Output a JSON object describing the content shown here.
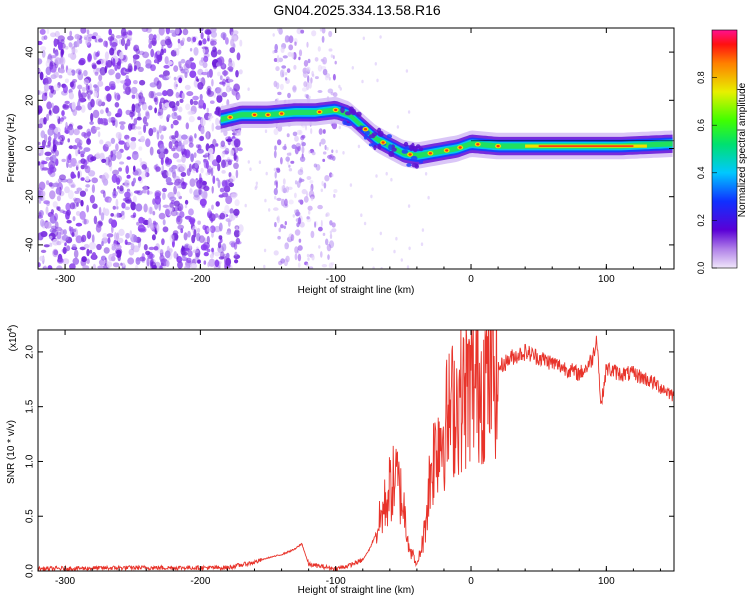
{
  "title": "GN04.2025.334.13.58.R16",
  "chart_data": [
    {
      "type": "heatmap",
      "name": "spectrogram",
      "xlabel": "Height of straight line (km)",
      "ylabel": "Frequency (Hz)",
      "xlim": [
        -320,
        150
      ],
      "ylim": [
        -50,
        50
      ],
      "xticks": [
        -300,
        -200,
        -100,
        0,
        100
      ],
      "yticks": [
        -40,
        -20,
        0,
        20,
        40
      ],
      "colorbar": {
        "label": "Normalized spectral amplitude",
        "range": [
          0,
          1
        ],
        "ticks": [
          0.0,
          0.2,
          0.4,
          0.6,
          0.8
        ]
      },
      "ridge": {
        "x": [
          -185,
          -170,
          -150,
          -130,
          -115,
          -100,
          -90,
          -80,
          -70,
          -60,
          -50,
          -40,
          -30,
          -20,
          -10,
          0,
          20,
          50,
          80,
          110,
          150
        ],
        "frequency": [
          12,
          14,
          14,
          15,
          15,
          16,
          14,
          9,
          4,
          1,
          -2,
          -3,
          -2,
          -1,
          0,
          2,
          1,
          1,
          1,
          1,
          2
        ]
      },
      "noise_region_x": [
        -320,
        -185
      ]
    },
    {
      "type": "line",
      "name": "snr",
      "xlabel": "Height of straight line (km)",
      "ylabel": "SNR (10 * v/v)",
      "yscale_label": "(x10",
      "yscale_exp": "4",
      "xlim": [
        -320,
        150
      ],
      "ylim": [
        0,
        2.2
      ],
      "xticks": [
        -300,
        -200,
        -100,
        0,
        100
      ],
      "yticks": [
        0.0,
        0.5,
        1.0,
        1.5,
        2.0
      ],
      "color": "#e8332a",
      "series": [
        {
          "name": "SNR",
          "x": [
            -320,
            -250,
            -180,
            -160,
            -150,
            -140,
            -130,
            -125,
            -120,
            -100,
            -90,
            -80,
            -75,
            -70,
            -65,
            -60,
            -55,
            -50,
            -45,
            -40,
            -35,
            -30,
            -25,
            -20,
            -15,
            -10,
            -5,
            0,
            10,
            20,
            30,
            40,
            50,
            60,
            70,
            80,
            85,
            90,
            93,
            96,
            100,
            110,
            120,
            130,
            140,
            150
          ],
          "y": [
            0.02,
            0.03,
            0.03,
            0.08,
            0.12,
            0.15,
            0.2,
            0.25,
            0.06,
            0.02,
            0.05,
            0.1,
            0.2,
            0.35,
            0.55,
            0.75,
            0.85,
            0.6,
            0.2,
            0.05,
            0.3,
            0.9,
            1.2,
            1.3,
            1.45,
            1.55,
            1.6,
            1.7,
            1.75,
            1.85,
            1.95,
            2.0,
            1.95,
            1.9,
            1.85,
            1.8,
            1.85,
            1.95,
            2.15,
            1.5,
            1.85,
            1.8,
            1.8,
            1.75,
            1.68,
            1.6
          ]
        }
      ]
    }
  ]
}
